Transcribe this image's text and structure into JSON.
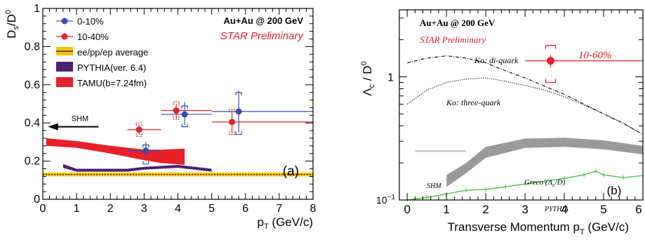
{
  "chart_data": [
    {
      "type": "scatter",
      "panel_label": "(a)",
      "xlabel_main": "p",
      "xlabel_sub": "T",
      "xlabel_unit": " (GeV/c)",
      "ylabel_main": "D",
      "ylabel_sub": "s",
      "ylabel_sep": "/D",
      "ylabel_sup": "0",
      "xlim": [
        0,
        8
      ],
      "ylim": [
        0,
        1
      ],
      "x_ticks": [
        "0",
        "1",
        "2",
        "3",
        "4",
        "5",
        "6",
        "7",
        "8"
      ],
      "y_ticks": [
        "0",
        "0.2",
        "0.4",
        "0.6",
        "0.8",
        "1"
      ],
      "system_label": "Au+Au @ 200 GeV",
      "preliminary_label": "STAR Preliminary",
      "shm_label": "SHM",
      "shm_value": 0.38,
      "colors": {
        "blue": "#3b4fa8",
        "red": "#e8202a",
        "purple": "#4b2170",
        "yellow": "#f2c10f"
      },
      "legend": [
        {
          "label": "0-10%",
          "kind": "marker",
          "color": "#3b4fa8"
        },
        {
          "label": "10-40%",
          "kind": "marker",
          "color": "#e8202a"
        },
        {
          "label": "ee/pp/ep average",
          "kind": "band",
          "color": "#f2c10f"
        },
        {
          "label": "PYTHIA(ver. 6.4)",
          "kind": "box",
          "color": "#4b2170"
        },
        {
          "label": "TAMU(b=7.24fm)",
          "kind": "box",
          "color": "#e8202a"
        }
      ],
      "series": [
        {
          "name": "0-10%",
          "color": "#3b4fa8",
          "points": [
            {
              "x": 3.05,
              "y": 0.255,
              "xlo": 2.5,
              "xhi": 3.5,
              "ylo": 0.215,
              "yhi": 0.3,
              "syslo": 0.185,
              "syshi": 0.285
            },
            {
              "x": 4.2,
              "y": 0.445,
              "xlo": 3.5,
              "xhi": 5.0,
              "ylo": 0.39,
              "yhi": 0.51,
              "syslo": 0.38,
              "syshi": 0.49
            },
            {
              "x": 5.8,
              "y": 0.46,
              "xlo": 5.0,
              "xhi": 8.0,
              "ylo": 0.35,
              "yhi": 0.57,
              "syslo": 0.34,
              "syshi": 0.56
            }
          ]
        },
        {
          "name": "10-40%",
          "color": "#e8202a",
          "points": [
            {
              "x": 2.85,
              "y": 0.365,
              "xlo": 2.5,
              "xhi": 3.5,
              "ylo": 0.34,
              "yhi": 0.39,
              "syslo": 0.33,
              "syshi": 0.4
            },
            {
              "x": 3.95,
              "y": 0.465,
              "xlo": 3.5,
              "xhi": 5.0,
              "ylo": 0.425,
              "yhi": 0.5,
              "syslo": 0.42,
              "syshi": 0.51
            },
            {
              "x": 5.6,
              "y": 0.405,
              "xlo": 5.0,
              "xhi": 8.0,
              "ylo": 0.345,
              "yhi": 0.465,
              "syslo": 0.34,
              "syshi": 0.47
            }
          ]
        }
      ],
      "average_band": {
        "y": 0.13,
        "ylo": 0.12,
        "yhi": 0.14
      },
      "pythia_band": [
        {
          "x": 0.6,
          "ylo": 0.165,
          "yhi": 0.185
        },
        {
          "x": 1.0,
          "ylo": 0.145,
          "yhi": 0.16
        },
        {
          "x": 2.5,
          "ylo": 0.145,
          "yhi": 0.16
        },
        {
          "x": 3.0,
          "ylo": 0.155,
          "yhi": 0.17
        },
        {
          "x": 4.0,
          "ylo": 0.165,
          "yhi": 0.18
        },
        {
          "x": 5.0,
          "ylo": 0.145,
          "yhi": 0.16
        }
      ],
      "tamu_band": [
        {
          "x": 0.1,
          "ylo": 0.28,
          "yhi": 0.32
        },
        {
          "x": 1.0,
          "ylo": 0.27,
          "yhi": 0.305
        },
        {
          "x": 2.0,
          "ylo": 0.24,
          "yhi": 0.28
        },
        {
          "x": 3.0,
          "ylo": 0.205,
          "yhi": 0.26
        },
        {
          "x": 3.5,
          "ylo": 0.19,
          "yhi": 0.26
        },
        {
          "x": 4.2,
          "ylo": 0.18,
          "yhi": 0.265
        }
      ]
    },
    {
      "type": "line",
      "panel_label": "(b)",
      "xlabel_main": "Transverse Momentum p",
      "xlabel_sub": "T",
      "xlabel_unit": " (GeV/c)",
      "ylabel_main": "Λ",
      "ylabel_sub": "c",
      "ylabel_sep": " / D",
      "ylabel_sup": "0",
      "xlim": [
        -0.2,
        6.0
      ],
      "ylim": [
        0.1,
        3.5
      ],
      "yscale": "log",
      "x_ticks": [
        "0",
        "1",
        "2",
        "3",
        "4",
        "5",
        "6"
      ],
      "y_tick_one": "1",
      "y_tick_base": "10",
      "y_tick_exp": "−1",
      "system_label": "Au+Au @ 200 GeV",
      "preliminary_label": "STAR Preliminary",
      "point_label": "10-60%",
      "colors": {
        "red": "#e8202a",
        "green": "#3fbf3f",
        "gray": "#9a9a9a",
        "shm": "#c8c8c8"
      },
      "point": {
        "x": 3.65,
        "y": 1.35,
        "xlo": 3.0,
        "xhi": 6.0,
        "ylo": 1.2,
        "yhi": 1.5,
        "syslo": 0.9,
        "syshi": 1.8
      },
      "curves": [
        {
          "name": "Ko: di-quark",
          "style": "dashdot",
          "points": [
            [
              0.0,
              1.3
            ],
            [
              0.5,
              1.42
            ],
            [
              1.0,
              1.48
            ],
            [
              1.5,
              1.42
            ],
            [
              2.0,
              1.3
            ],
            [
              2.5,
              1.12
            ],
            [
              3.0,
              0.98
            ],
            [
              3.5,
              0.84
            ],
            [
              4.0,
              0.72
            ],
            [
              4.5,
              0.6
            ],
            [
              5.0,
              0.5
            ],
            [
              5.5,
              0.42
            ],
            [
              6.0,
              0.34
            ]
          ]
        },
        {
          "name": "Ko: three-quark",
          "style": "dotted",
          "points": [
            [
              0.0,
              0.6
            ],
            [
              0.5,
              0.78
            ],
            [
              1.0,
              0.9
            ],
            [
              1.5,
              0.96
            ],
            [
              2.0,
              0.98
            ],
            [
              2.5,
              0.92
            ],
            [
              3.0,
              0.85
            ],
            [
              3.5,
              0.78
            ],
            [
              4.0,
              0.69
            ],
            [
              4.5,
              0.59
            ],
            [
              5.0,
              0.5
            ],
            [
              5.5,
              0.42
            ],
            [
              6.0,
              0.34
            ]
          ]
        }
      ],
      "shm": {
        "label": "SHM",
        "value": 0.25,
        "xlo": 0.2,
        "xhi": 1.5
      },
      "greco": {
        "label_main": "Greco (Λ",
        "label_sub": "c",
        "label_end": "/D)",
        "band": [
          {
            "x": 1.0,
            "ylo": 0.128,
            "yhi": 0.16
          },
          {
            "x": 1.5,
            "ylo": 0.165,
            "yhi": 0.2
          },
          {
            "x": 2.0,
            "ylo": 0.22,
            "yhi": 0.27
          },
          {
            "x": 3.0,
            "ylo": 0.265,
            "yhi": 0.315
          },
          {
            "x": 4.0,
            "ylo": 0.27,
            "yhi": 0.32
          },
          {
            "x": 5.0,
            "ylo": 0.258,
            "yhi": 0.305
          },
          {
            "x": 6.0,
            "ylo": 0.235,
            "yhi": 0.275
          }
        ]
      },
      "pythia": {
        "label": "PYTHIA",
        "points": [
          [
            0.0,
            0.1
          ],
          [
            0.5,
            0.105
          ],
          [
            1.0,
            0.112
          ],
          [
            1.5,
            0.12
          ],
          [
            2.0,
            0.122
          ],
          [
            2.5,
            0.128
          ],
          [
            3.0,
            0.135
          ],
          [
            3.5,
            0.142
          ],
          [
            4.0,
            0.15
          ],
          [
            4.5,
            0.16
          ],
          [
            4.8,
            0.172
          ],
          [
            5.0,
            0.16
          ],
          [
            5.5,
            0.152
          ],
          [
            6.0,
            0.158
          ]
        ]
      }
    }
  ]
}
